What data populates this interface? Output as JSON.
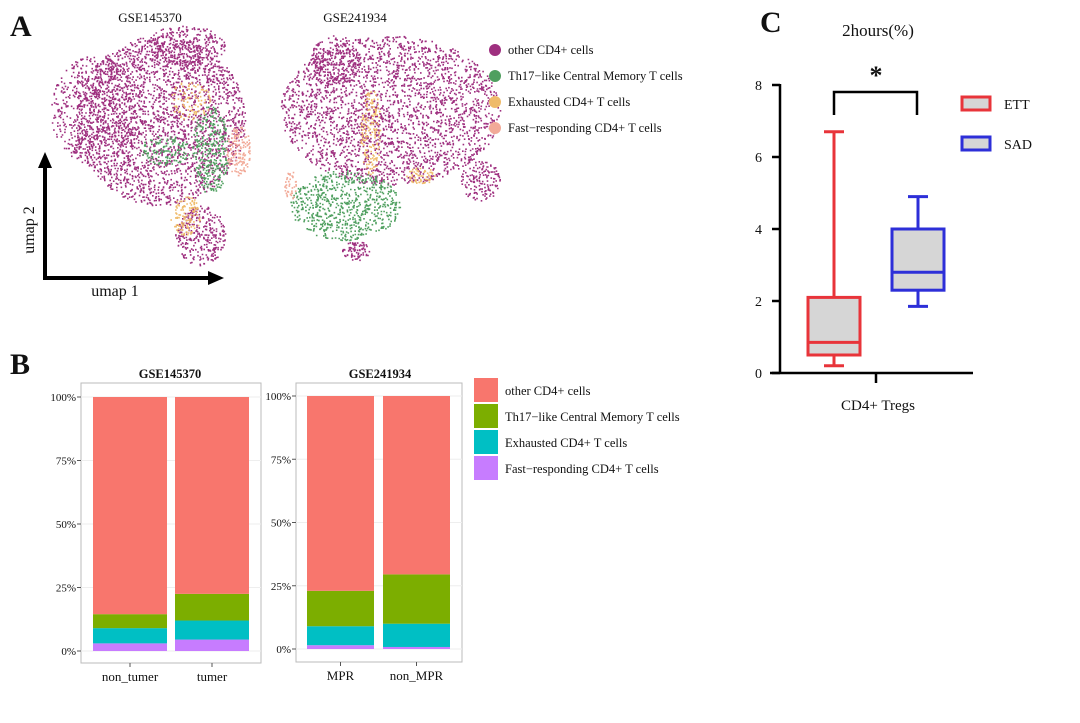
{
  "panel_labels": {
    "a": "A",
    "b": "B",
    "c": "C"
  },
  "chart_data": [
    {
      "type": "scatter",
      "panel": "A",
      "facets": [
        "GSE145370",
        "GSE241934"
      ],
      "xlabel": "umap 1",
      "ylabel": "umap 2",
      "legend": [
        {
          "name": "other CD4+ cells",
          "color": "#9e2f7f"
        },
        {
          "name": "Th17−like Central Memory T cells",
          "color": "#4f9f5f"
        },
        {
          "name": "Exhausted CD4+ T cells",
          "color": "#efbb6a"
        },
        {
          "name": "Fast−responding CD4+ T cells",
          "color": "#f2aa98"
        }
      ],
      "legend_position": "right"
    },
    {
      "type": "bar",
      "stacked": true,
      "panel": "B",
      "ytick_labels": [
        "0%",
        "25%",
        "50%",
        "75%",
        "100%"
      ],
      "ylim": [
        0,
        100
      ],
      "grid": true,
      "legend_position": "right",
      "legend": [
        {
          "name": "other CD4+ cells",
          "color": "#f8766d"
        },
        {
          "name": "Th17−like Central Memory T cells",
          "color": "#7cae00"
        },
        {
          "name": "Exhausted CD4+ T cells",
          "color": "#00bfc4"
        },
        {
          "name": "Fast−responding CD4+ T cells",
          "color": "#c77cff"
        }
      ],
      "facets": [
        {
          "title": "GSE145370",
          "categories": [
            "non_tumer",
            "tumer"
          ],
          "series": [
            {
              "name": "Fast−responding CD4+ T cells",
              "values": [
                3,
                4.5
              ]
            },
            {
              "name": "Exhausted CD4+ T cells",
              "values": [
                6,
                7.5
              ]
            },
            {
              "name": "Th17−like Central Memory T cells",
              "values": [
                5.5,
                10.5
              ]
            },
            {
              "name": "other CD4+ cells",
              "values": [
                85.5,
                77.5
              ]
            }
          ]
        },
        {
          "title": "GSE241934",
          "categories": [
            "MPR",
            "non_MPR"
          ],
          "series": [
            {
              "name": "Fast−responding CD4+ T cells",
              "values": [
                1.5,
                0.8
              ]
            },
            {
              "name": "Exhausted CD4+ T cells",
              "values": [
                7.5,
                9.2
              ]
            },
            {
              "name": "Th17−like Central Memory T cells",
              "values": [
                14,
                19.5
              ]
            },
            {
              "name": "other CD4+ cells",
              "values": [
                77,
                70.5
              ]
            }
          ]
        }
      ]
    },
    {
      "type": "box",
      "panel": "C",
      "title": "2hours(%)",
      "xlabel": "CD4+ Tregs",
      "ylim": [
        0,
        8
      ],
      "yticks": [
        "0",
        "2",
        "4",
        "6",
        "8"
      ],
      "significance": "*",
      "legend_position": "right",
      "series": [
        {
          "name": "ETT",
          "color": "#e8343a",
          "min": 0.2,
          "q1": 0.5,
          "median": 0.85,
          "q3": 2.1,
          "max": 6.7
        },
        {
          "name": "SAD",
          "color": "#2d2fd8",
          "min": 1.85,
          "q1": 2.3,
          "median": 2.8,
          "q3": 4.0,
          "max": 4.9
        }
      ]
    }
  ]
}
